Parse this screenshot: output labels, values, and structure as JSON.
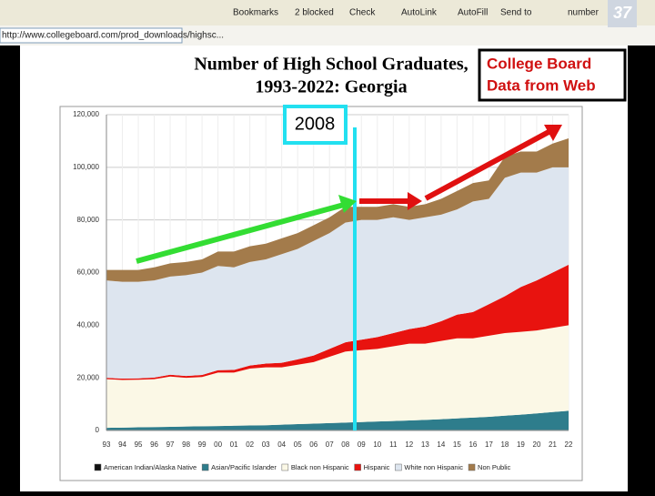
{
  "browser": {
    "toolbar": [
      "Bookmarks",
      "2 blocked",
      "Check",
      "AutoLink",
      "AutoFill",
      "Send to",
      "number"
    ],
    "url": "http://www.collegeboard.com/prod_downloads/highsc..."
  },
  "slide": {
    "number": "37",
    "title_line1": "Number of High School Graduates,",
    "title_line2": "1993-2022:  Georgia",
    "callout": [
      "College Board",
      "Data from Web"
    ],
    "marker_label": "2008"
  },
  "chart_data": {
    "type": "stacked-area",
    "categories": [
      "93",
      "94",
      "95",
      "96",
      "97",
      "98",
      "99",
      "00",
      "01",
      "02",
      "03",
      "04",
      "05",
      "06",
      "07",
      "08",
      "09",
      "10",
      "11",
      "12",
      "13",
      "14",
      "15",
      "16",
      "17",
      "18",
      "19",
      "20",
      "21",
      "22"
    ],
    "series": [
      {
        "name": "American Indian/Alaska Native",
        "color": "#111111",
        "values": [
          200,
          200,
          200,
          200,
          200,
          200,
          200,
          200,
          200,
          200,
          200,
          200,
          200,
          200,
          200,
          200,
          200,
          200,
          200,
          200,
          200,
          200,
          200,
          200,
          200,
          200,
          200,
          200,
          200,
          200
        ]
      },
      {
        "name": "Asian/Pacific Islander",
        "color": "#2e7d8c",
        "values": [
          800,
          900,
          1000,
          1100,
          1200,
          1300,
          1400,
          1500,
          1600,
          1700,
          1800,
          2000,
          2200,
          2400,
          2600,
          2800,
          3000,
          3200,
          3400,
          3600,
          3800,
          4100,
          4400,
          4700,
          5000,
          5400,
          5800,
          6300,
          6800,
          7300
        ]
      },
      {
        "name": "Black non Hispanic",
        "color": "#fbf8e6",
        "values": [
          18500,
          18100,
          18100,
          18200,
          19100,
          18500,
          18700,
          20300,
          20200,
          21600,
          22000,
          21800,
          22600,
          23400,
          25200,
          27000,
          27300,
          27600,
          28400,
          29200,
          29000,
          29700,
          30400,
          30100,
          30800,
          31400,
          31500,
          31500,
          32000,
          32500
        ]
      },
      {
        "name": "Hispanic",
        "color": "#e8130f",
        "values": [
          500,
          500,
          500,
          600,
          700,
          700,
          800,
          900,
          1000,
          1200,
          1400,
          1700,
          2000,
          2500,
          3000,
          3500,
          4000,
          4500,
          5000,
          5500,
          6500,
          7500,
          9000,
          10000,
          12000,
          14000,
          17000,
          19000,
          21000,
          23000
        ]
      },
      {
        "name": "White non Hispanic",
        "color": "#dde5ef",
        "values": [
          37000,
          36800,
          36700,
          36900,
          37300,
          38300,
          38900,
          39600,
          39000,
          39300,
          39600,
          41300,
          42000,
          43500,
          44000,
          45500,
          45500,
          44500,
          44000,
          41500,
          41500,
          40500,
          40000,
          42000,
          40000,
          45000,
          43500,
          41000,
          40000,
          37000
        ]
      },
      {
        "name": "Non Public",
        "color": "#a37b4b",
        "values": [
          4000,
          4500,
          4500,
          5000,
          5000,
          5000,
          5000,
          5500,
          6000,
          6000,
          6000,
          6000,
          6000,
          6000,
          6000,
          6000,
          5000,
          5000,
          5000,
          5000,
          5000,
          6000,
          7000,
          7000,
          7000,
          8000,
          8000,
          8000,
          9000,
          11000
        ]
      }
    ],
    "ylim": [
      0,
      120000
    ],
    "yticks": [
      0,
      {
        "value": 20000,
        "label": "20,000"
      },
      {
        "value": 40000,
        "label": "40,000"
      },
      {
        "value": 60000,
        "label": "60,000"
      },
      {
        "value": 80000,
        "label": "80,000"
      },
      {
        "value": 100000,
        "label": "100,000"
      },
      {
        "value": 120000,
        "label": "120,000"
      }
    ],
    "grid": true,
    "legend": "bottom"
  }
}
